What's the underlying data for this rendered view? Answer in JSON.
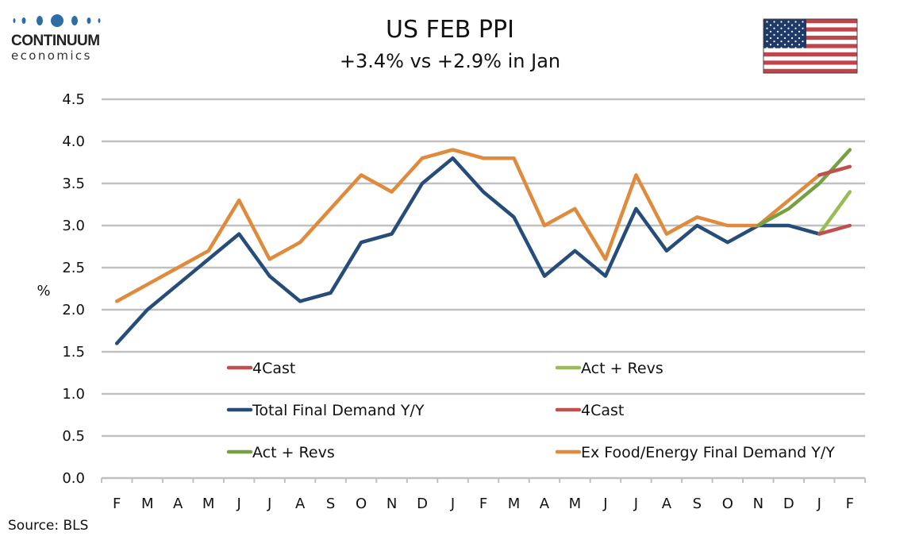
{
  "header": {
    "logo_word": "CONTINUUM",
    "logo_sub": "economics",
    "title": "US FEB PPI",
    "subtitle": "+3.4% vs +2.9% in Jan",
    "flag_icon": "us-flag-icon"
  },
  "footer": {
    "source": "Source: BLS"
  },
  "colors": {
    "total": "#264d7a",
    "exfe": "#e08a3c",
    "forecast": "#c0504d",
    "act_total": "#9bbb59",
    "act_exfe": "#77a043",
    "grid": "#c0c0c0",
    "logo_blue": "#2e6ea6"
  },
  "chart_data": {
    "type": "line",
    "title": "US FEB PPI",
    "subtitle": "+3.4% vs +2.9% in Jan",
    "xlabel": "",
    "ylabel": "%",
    "ylim": [
      0,
      4.5
    ],
    "yticks": [
      "0.0",
      "0.5",
      "1.0",
      "1.5",
      "2.0",
      "2.5",
      "3.0",
      "3.5",
      "4.0",
      "4.5"
    ],
    "grid": true,
    "categories": [
      "F",
      "M",
      "A",
      "M",
      "J",
      "J",
      "A",
      "S",
      "O",
      "N",
      "D",
      "J",
      "F",
      "M",
      "A",
      "M",
      "J",
      "J",
      "A",
      "S",
      "O",
      "N",
      "D",
      "J",
      "F"
    ],
    "series": [
      {
        "name": "Total Final Demand Y/Y",
        "color_key": "total",
        "values": [
          1.6,
          2.0,
          2.3,
          2.6,
          2.9,
          2.4,
          2.1,
          2.2,
          2.8,
          2.9,
          3.5,
          3.8,
          3.4,
          3.1,
          2.4,
          2.7,
          2.4,
          3.2,
          2.7,
          3.0,
          2.8,
          3.0,
          3.0,
          2.9,
          null
        ]
      },
      {
        "name": "4Cast",
        "color_key": "forecast",
        "values": [
          null,
          null,
          null,
          null,
          null,
          null,
          null,
          null,
          null,
          null,
          null,
          null,
          null,
          null,
          null,
          null,
          null,
          null,
          null,
          null,
          null,
          null,
          null,
          2.9,
          3.0
        ]
      },
      {
        "name": "Act + Revs",
        "color_key": "act_total",
        "values": [
          null,
          null,
          null,
          null,
          null,
          null,
          null,
          null,
          null,
          null,
          null,
          null,
          null,
          null,
          null,
          null,
          null,
          null,
          null,
          null,
          null,
          null,
          null,
          2.9,
          3.4
        ]
      },
      {
        "name": "Ex Food/Energy Final Demand Y/Y",
        "color_key": "exfe",
        "values": [
          2.1,
          2.3,
          2.5,
          2.7,
          3.3,
          2.6,
          2.8,
          3.2,
          3.6,
          3.4,
          3.8,
          3.9,
          3.8,
          3.8,
          3.0,
          3.2,
          2.6,
          3.6,
          2.9,
          3.1,
          3.0,
          3.0,
          3.3,
          3.6,
          null
        ]
      },
      {
        "name": "4Cast",
        "color_key": "forecast",
        "values": [
          null,
          null,
          null,
          null,
          null,
          null,
          null,
          null,
          null,
          null,
          null,
          null,
          null,
          null,
          null,
          null,
          null,
          null,
          null,
          null,
          null,
          null,
          null,
          3.6,
          3.7
        ]
      },
      {
        "name": "Act + Revs",
        "color_key": "act_exfe",
        "values": [
          null,
          null,
          null,
          null,
          null,
          null,
          null,
          null,
          null,
          null,
          null,
          null,
          null,
          null,
          null,
          null,
          null,
          null,
          null,
          null,
          null,
          3.0,
          3.2,
          3.5,
          3.9
        ]
      }
    ],
    "legend": {
      "placement": "bottom-inside",
      "entries": [
        {
          "label": "4Cast",
          "color_key": "forecast"
        },
        {
          "label": "Act + Revs",
          "color_key": "act_total"
        },
        {
          "label": "Total Final Demand Y/Y",
          "color_key": "total"
        },
        {
          "label": "4Cast",
          "color_key": "forecast"
        },
        {
          "label": "Act + Revs",
          "color_key": "act_exfe"
        },
        {
          "label": "Ex Food/Energy Final Demand Y/Y",
          "color_key": "exfe"
        }
      ]
    }
  }
}
